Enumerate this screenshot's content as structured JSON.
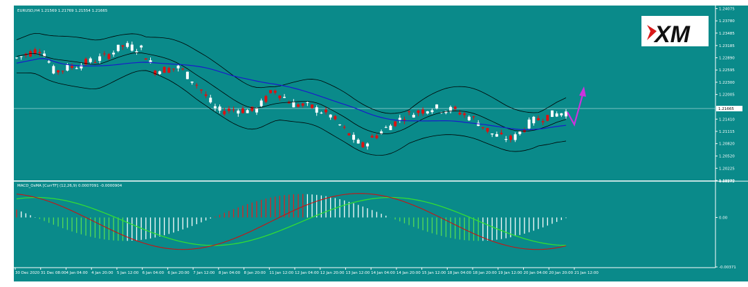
{
  "colors": {
    "background": "#ffffff",
    "panel_bg": "#0a8a8a",
    "grid_text": "#ffffff",
    "bull_candle": "#ffffff",
    "bear_candle": "#dd1111",
    "bollinger": "#000000",
    "moving_average": "#1a1acc",
    "macd_fast": "#cc1111",
    "macd_signal": "#33dd33",
    "hist_pos_up": "#dd2222",
    "hist_pos_down": "#ffffff",
    "hist_neg_up": "#55dd55",
    "hist_neg_down": "#ffffff",
    "forecast_arrow": "#cc33dd",
    "logo_red": "#d91a1a",
    "logo_black": "#111111"
  },
  "logo": {
    "text": "XM"
  },
  "chart_data": [
    {
      "type": "candlestick",
      "title": "EURUSD,H4  1.21569 1.21769 1.21554 1.21665",
      "symbol": "EURUSD",
      "timeframe": "H4",
      "ylim": [
        1.1993,
        1.2415
      ],
      "y_ticks": [
        "1.24075",
        "1.23780",
        "1.23485",
        "1.23185",
        "1.22890",
        "1.22595",
        "1.22300",
        "1.22005",
        "1.21410",
        "1.21115",
        "1.20820",
        "1.20520",
        "1.20225",
        "1.19930"
      ],
      "current_price": "1.21665",
      "grid": false,
      "indicators": [
        "Bollinger Bands",
        "Moving Average"
      ],
      "forecast": "up"
    },
    {
      "type": "histogram+line",
      "title": "MACD_OsMA [CurrTF] (12,26,9) 0.0007091 -0.0000904",
      "ylim": [
        -0.00371,
        0.00272
      ],
      "y_ticks": [
        "0.00272",
        "0.00",
        "-0.00371"
      ],
      "series": [
        {
          "name": "MACD",
          "type": "line"
        },
        {
          "name": "Signal",
          "type": "line"
        },
        {
          "name": "OsMA",
          "type": "histogram"
        }
      ]
    }
  ],
  "x_labels": [
    "30 Dec 2020",
    "31 Dec 08:00",
    "4 Jan 04:00",
    "4 Jan 20:00",
    "5 Jan 12:00",
    "6 Jan 04:00",
    "6 Jan 20:00",
    "7 Jan 12:00",
    "8 Jan 04:00",
    "8 Jan 20:00",
    "11 Jan 12:00",
    "12 Jan 04:00",
    "12 Jan 20:00",
    "13 Jan 12:00",
    "14 Jan 04:00",
    "14 Jan 20:00",
    "15 Jan 12:00",
    "18 Jan 04:00",
    "18 Jan 20:00",
    "19 Jan 12:00",
    "20 Jan 04:00",
    "20 Jan 20:00",
    "21 Jan 12:00"
  ]
}
